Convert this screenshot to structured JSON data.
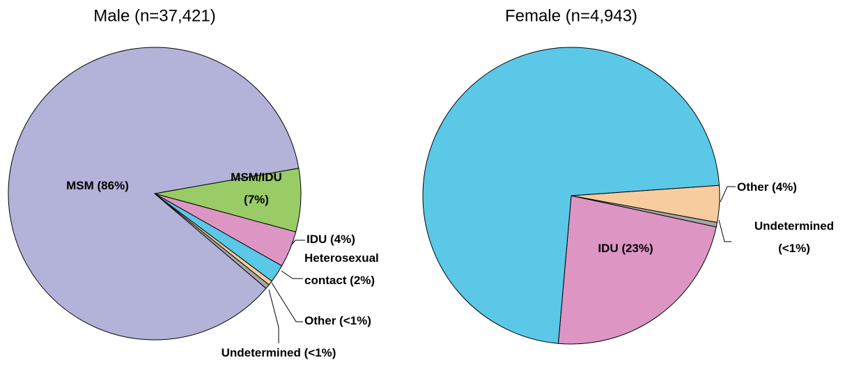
{
  "chart_data": [
    {
      "type": "pie",
      "title": "Male (n=37,421)",
      "labels": [
        [
          "MSM/IDU",
          "(7%)"
        ],
        [
          "IDU (4%)"
        ],
        [
          "Heterosexual",
          "contact  (2%)"
        ],
        [
          "Other (<1%)"
        ],
        [
          "Undetermined (<1%)"
        ],
        [
          "MSM (86%)"
        ]
      ],
      "values": [
        7,
        4,
        2,
        0.5,
        0.5,
        86
      ],
      "colors": [
        "#99cc66",
        "#dd96c4",
        "#5bc8e8",
        "#f7cc9e",
        "#a6a6a6",
        "#b3b3d9"
      ]
    },
    {
      "type": "pie",
      "title": "Female (n=4,943)",
      "labels": [
        [
          "Other (4%)"
        ],
        [
          "Undetermined",
          "(<1%)"
        ],
        [
          "IDU (23%)"
        ],
        null
      ],
      "values": [
        4,
        0.5,
        23,
        72.5
      ],
      "colors": [
        "#f7cc9e",
        "#a6a6a6",
        "#dd96c4",
        "#5bc8e8"
      ]
    }
  ]
}
